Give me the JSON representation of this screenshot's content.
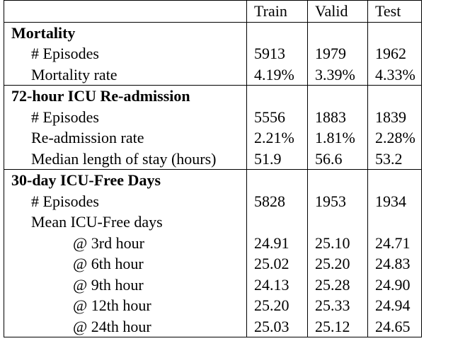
{
  "table": {
    "columns": [
      "",
      "Train",
      "Valid",
      "Test"
    ],
    "sections": [
      {
        "title": "Mortality",
        "rows": [
          {
            "label": "# Episodes",
            "values": [
              "5913",
              "1979",
              "1962"
            ]
          },
          {
            "label": "Mortality rate",
            "values": [
              "4.19%",
              "3.39%",
              "4.33%"
            ]
          }
        ]
      },
      {
        "title": "72-hour ICU Re-admission",
        "rows": [
          {
            "label": "# Episodes",
            "values": [
              "5556",
              "1883",
              "1839"
            ]
          },
          {
            "label": "Re-admission rate",
            "values": [
              "2.21%",
              "1.81%",
              "2.28%"
            ]
          },
          {
            "label": "Median length of stay (hours)",
            "values": [
              "51.9",
              "56.6",
              "53.2"
            ]
          }
        ]
      },
      {
        "title": "30-day ICU-Free Days",
        "rows": [
          {
            "label": "# Episodes",
            "values": [
              "5828",
              "1953",
              "1934"
            ]
          },
          {
            "label": "Mean ICU-Free days",
            "values": [
              "",
              "",
              ""
            ]
          },
          {
            "label": "@ 3rd hour",
            "values": [
              "24.91",
              "25.10",
              "24.71"
            ]
          },
          {
            "label": "@ 6th hour",
            "values": [
              "25.02",
              "25.20",
              "24.83"
            ]
          },
          {
            "label": "@ 9th hour",
            "values": [
              "24.13",
              "25.28",
              "24.90"
            ]
          },
          {
            "label": "@ 12th hour",
            "values": [
              "25.20",
              "25.33",
              "24.94"
            ]
          },
          {
            "label": "@ 24th hour",
            "values": [
              "25.03",
              "25.12",
              "24.65"
            ]
          }
        ]
      }
    ]
  }
}
